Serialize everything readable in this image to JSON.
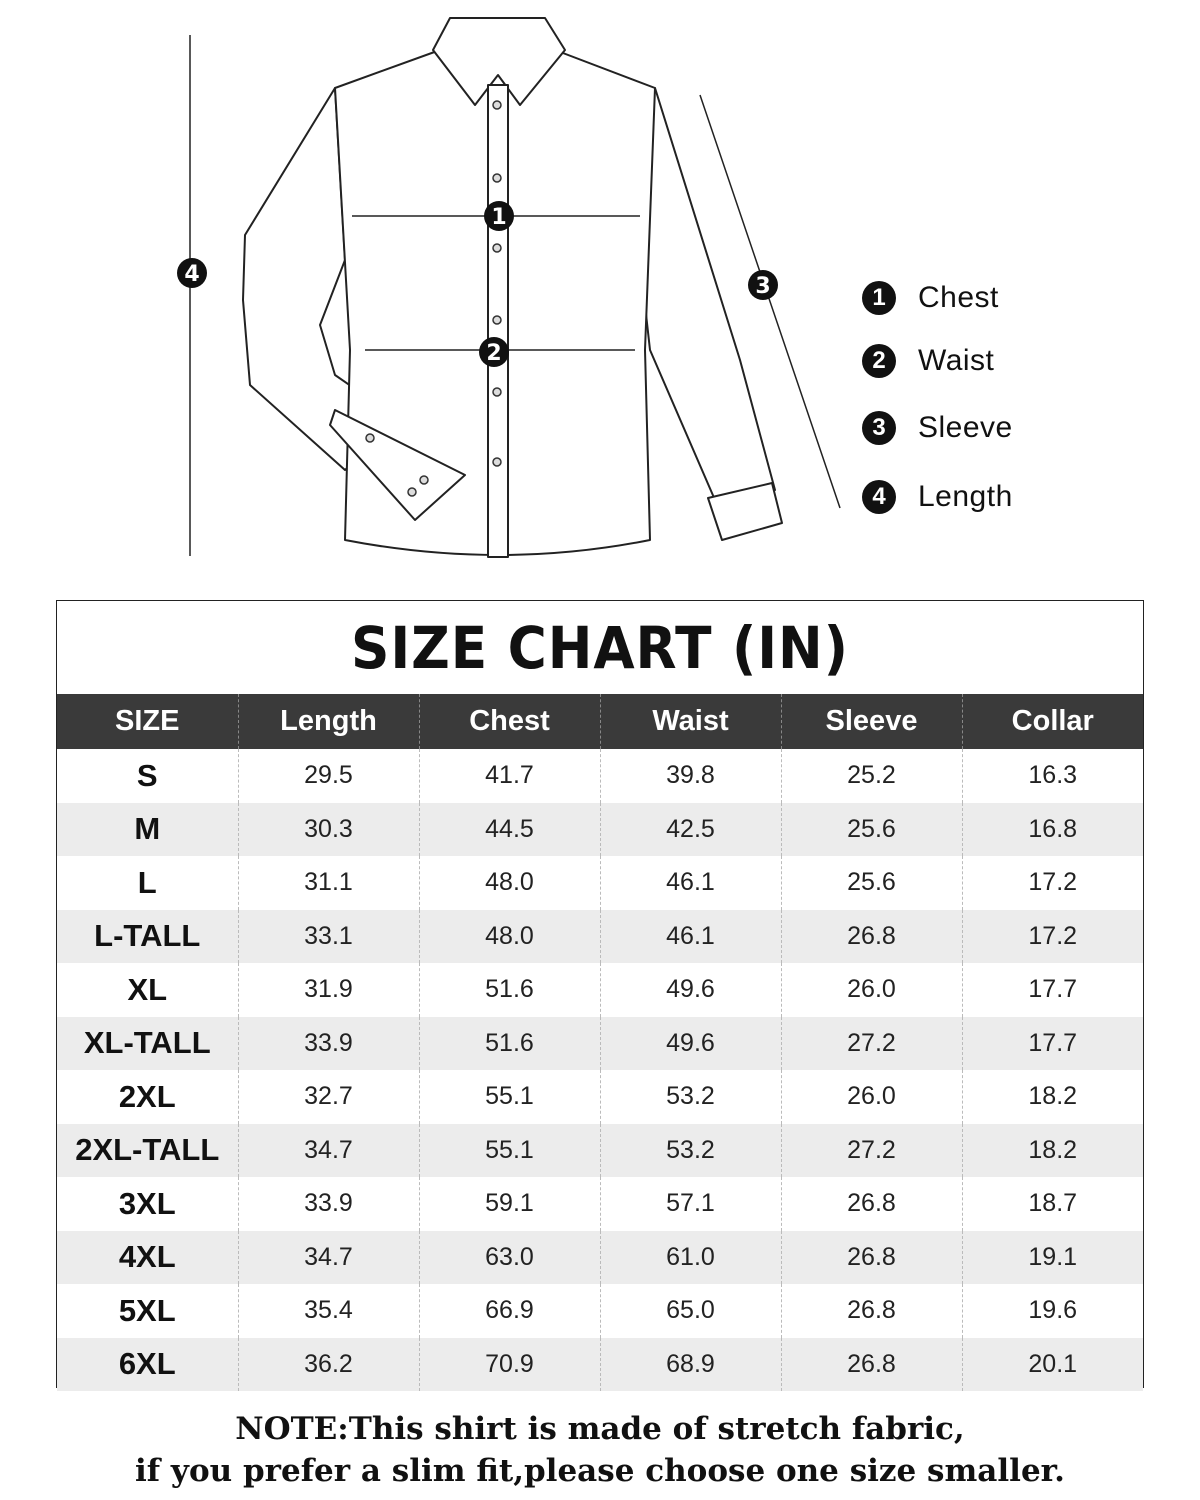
{
  "diagram": {
    "markers": [
      "1",
      "2",
      "3",
      "4"
    ],
    "legend": [
      {
        "number": "1",
        "label": "Chest"
      },
      {
        "number": "2",
        "label": "Waist"
      },
      {
        "number": "3",
        "label": "Sleeve"
      },
      {
        "number": "4",
        "label": "Length"
      }
    ]
  },
  "size_chart": {
    "title": "SIZE CHART (IN)",
    "columns": [
      "SIZE",
      "Length",
      "Chest",
      "Waist",
      "Sleeve",
      "Collar"
    ],
    "rows": [
      [
        "S",
        "29.5",
        "41.7",
        "39.8",
        "25.2",
        "16.3"
      ],
      [
        "M",
        "30.3",
        "44.5",
        "42.5",
        "25.6",
        "16.8"
      ],
      [
        "L",
        "31.1",
        "48.0",
        "46.1",
        "25.6",
        "17.2"
      ],
      [
        "L-TALL",
        "33.1",
        "48.0",
        "46.1",
        "26.8",
        "17.2"
      ],
      [
        "XL",
        "31.9",
        "51.6",
        "49.6",
        "26.0",
        "17.7"
      ],
      [
        "XL-TALL",
        "33.9",
        "51.6",
        "49.6",
        "27.2",
        "17.7"
      ],
      [
        "2XL",
        "32.7",
        "55.1",
        "53.2",
        "26.0",
        "18.2"
      ],
      [
        "2XL-TALL",
        "34.7",
        "55.1",
        "53.2",
        "27.2",
        "18.2"
      ],
      [
        "3XL",
        "33.9",
        "59.1",
        "57.1",
        "26.8",
        "18.7"
      ],
      [
        "4XL",
        "34.7",
        "63.0",
        "61.0",
        "26.8",
        "19.1"
      ],
      [
        "5XL",
        "35.4",
        "66.9",
        "65.0",
        "26.8",
        "19.6"
      ],
      [
        "6XL",
        "36.2",
        "70.9",
        "68.9",
        "26.8",
        "20.1"
      ]
    ]
  },
  "note": {
    "line1": "NOTE:This shirt is made of stretch fabric,",
    "line2": "if you prefer a slim fit,please choose one size smaller."
  }
}
